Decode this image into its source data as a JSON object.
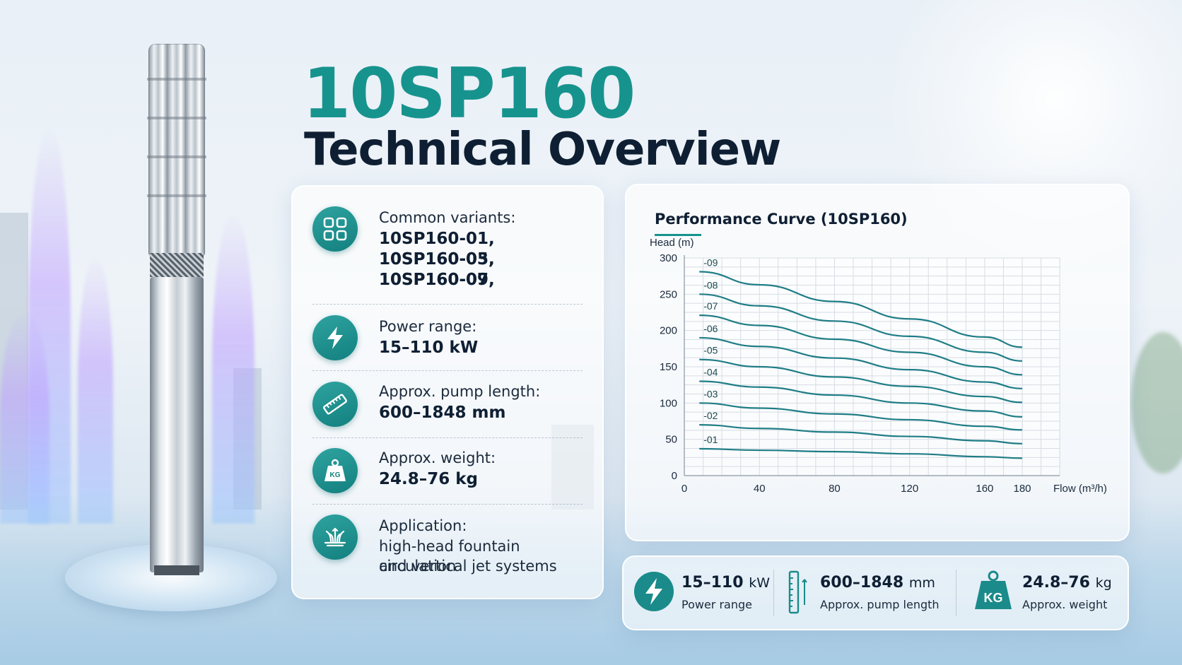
{
  "header": {
    "model": "10SP160",
    "subtitle": "Technical Overview"
  },
  "specs": {
    "variants": {
      "icon": "grid-icon",
      "label": "Common variants:",
      "lines": [
        "10SP160-01, 10SP160-03,",
        "10SP160-05, 10SP160-07,",
        "10SP160-09"
      ]
    },
    "power": {
      "icon": "lightning-icon",
      "label": "Power range:",
      "value": "15–110 kW"
    },
    "length": {
      "icon": "ruler-icon",
      "label": "Approx. pump length:",
      "value": "600–1848 mm"
    },
    "weight": {
      "icon": "kg-weight-icon",
      "label": "Approx. weight:",
      "value": "24.8–76 kg",
      "icon_text": "KG"
    },
    "application": {
      "icon": "fountain-icon",
      "label": "Application:",
      "lines": [
        "high-head fountain circulation",
        "and vertical jet systems"
      ]
    }
  },
  "chart_data": {
    "type": "line",
    "title": "Performance Curve (10SP160)",
    "xlabel": "Flow (m³/h)",
    "ylabel": "Head (m)",
    "xlim": [
      0,
      180
    ],
    "ylim": [
      0,
      300
    ],
    "x_ticks": [
      0,
      40,
      80,
      120,
      160,
      180
    ],
    "y_ticks": [
      0,
      50,
      100,
      150,
      200,
      250,
      300
    ],
    "grid": true,
    "x": [
      8,
      40,
      80,
      120,
      160,
      180
    ],
    "series": [
      {
        "name": "-01",
        "values": [
          37,
          35,
          33,
          30,
          26,
          24
        ]
      },
      {
        "name": "-02",
        "values": [
          70,
          65,
          60,
          54,
          48,
          44
        ]
      },
      {
        "name": "-03",
        "values": [
          100,
          93,
          85,
          77,
          68,
          63
        ]
      },
      {
        "name": "-04",
        "values": [
          130,
          122,
          111,
          100,
          89,
          81
        ]
      },
      {
        "name": "-05",
        "values": [
          160,
          150,
          136,
          123,
          109,
          101
        ]
      },
      {
        "name": "-06",
        "values": [
          190,
          178,
          162,
          146,
          129,
          120
        ]
      },
      {
        "name": "-07",
        "values": [
          221,
          207,
          188,
          170,
          150,
          139
        ]
      },
      {
        "name": "-08",
        "values": [
          250,
          234,
          213,
          192,
          170,
          158
        ]
      },
      {
        "name": "-09",
        "values": [
          281,
          263,
          240,
          216,
          191,
          177
        ]
      }
    ],
    "line_color": "#1f7d86"
  },
  "stats": [
    {
      "icon": "lightning-icon",
      "value": "15–110",
      "unit": "kW",
      "label": "Power range"
    },
    {
      "icon": "ruler-icon",
      "value": "600–1848",
      "unit": "mm",
      "label": "Approx. pump length"
    },
    {
      "icon": "kg-weight-icon",
      "value": "24.8–76",
      "unit": "kg",
      "label": "Approx. weight",
      "icon_text": "KG"
    }
  ],
  "colors": {
    "accent": "#17938e",
    "title_dark": "#0f1f33"
  }
}
